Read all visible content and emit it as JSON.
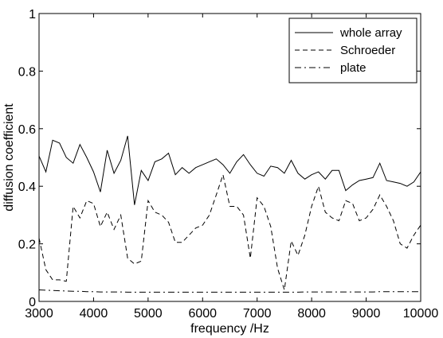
{
  "chart_data": {
    "type": "line",
    "title": "",
    "xlabel": "frequency /Hz",
    "ylabel": "diffusion coefficient",
    "xlim": [
      3000,
      10000
    ],
    "ylim": [
      0,
      1
    ],
    "xticks": [
      "3000",
      "4000",
      "5000",
      "6000",
      "7000",
      "8000",
      "9000",
      "10000"
    ],
    "yticks": [
      "0",
      "0.2",
      "0.4",
      "0.6",
      "0.8",
      "1"
    ],
    "grid": false,
    "legend_position": "top-right",
    "x": [
      3000,
      3125,
      3250,
      3375,
      3500,
      3625,
      3750,
      3875,
      4000,
      4125,
      4250,
      4375,
      4500,
      4625,
      4750,
      4875,
      5000,
      5125,
      5250,
      5375,
      5500,
      5625,
      5750,
      5875,
      6000,
      6125,
      6250,
      6375,
      6500,
      6625,
      6750,
      6875,
      7000,
      7125,
      7250,
      7375,
      7500,
      7625,
      7750,
      7875,
      8000,
      8125,
      8250,
      8375,
      8500,
      8625,
      8750,
      8875,
      9000,
      9125,
      9250,
      9375,
      9500,
      9625,
      9750,
      9875,
      10000
    ],
    "series": [
      {
        "name": "whole array",
        "style": "solid",
        "values": [
          0.505,
          0.45,
          0.56,
          0.55,
          0.5,
          0.48,
          0.545,
          0.5,
          0.45,
          0.38,
          0.525,
          0.445,
          0.49,
          0.575,
          0.335,
          0.455,
          0.42,
          0.485,
          0.495,
          0.515,
          0.44,
          0.465,
          0.445,
          0.465,
          0.475,
          0.485,
          0.495,
          0.475,
          0.445,
          0.485,
          0.51,
          0.475,
          0.445,
          0.435,
          0.47,
          0.465,
          0.445,
          0.49,
          0.445,
          0.425,
          0.44,
          0.45,
          0.425,
          0.455,
          0.455,
          0.385,
          0.405,
          0.42,
          0.425,
          0.43,
          0.48,
          0.42,
          0.415,
          0.41,
          0.4,
          0.415,
          0.45
        ]
      },
      {
        "name": "Schroeder",
        "style": "dashed",
        "values": [
          0.22,
          0.11,
          0.075,
          0.075,
          0.07,
          0.33,
          0.29,
          0.35,
          0.34,
          0.26,
          0.31,
          0.25,
          0.3,
          0.15,
          0.13,
          0.14,
          0.35,
          0.31,
          0.3,
          0.275,
          0.205,
          0.205,
          0.23,
          0.255,
          0.265,
          0.3,
          0.37,
          0.44,
          0.33,
          0.33,
          0.3,
          0.15,
          0.36,
          0.33,
          0.26,
          0.115,
          0.04,
          0.21,
          0.16,
          0.23,
          0.33,
          0.4,
          0.31,
          0.29,
          0.28,
          0.35,
          0.34,
          0.28,
          0.29,
          0.32,
          0.37,
          0.33,
          0.28,
          0.2,
          0.185,
          0.23,
          0.265
        ]
      },
      {
        "name": "plate",
        "style": "dashdot",
        "values": [
          0.04,
          0.039,
          0.038,
          0.037,
          0.036,
          0.035,
          0.035,
          0.034,
          0.034,
          0.033,
          0.033,
          0.033,
          0.033,
          0.032,
          0.032,
          0.032,
          0.032,
          0.032,
          0.032,
          0.032,
          0.032,
          0.032,
          0.032,
          0.032,
          0.032,
          0.032,
          0.032,
          0.032,
          0.032,
          0.032,
          0.032,
          0.032,
          0.032,
          0.032,
          0.032,
          0.032,
          0.032,
          0.032,
          0.032,
          0.033,
          0.033,
          0.033,
          0.033,
          0.033,
          0.033,
          0.033,
          0.033,
          0.033,
          0.033,
          0.033,
          0.034,
          0.034,
          0.034,
          0.034,
          0.034,
          0.034,
          0.034
        ]
      }
    ]
  }
}
